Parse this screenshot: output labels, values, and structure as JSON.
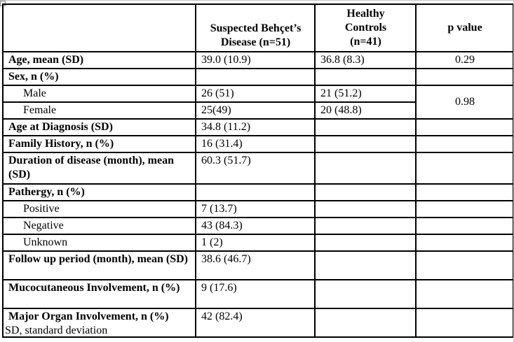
{
  "table": {
    "columns": [
      {
        "lines": []
      },
      {
        "lines": [
          "Suspected Behçet’s",
          "Disease (n=51)"
        ]
      },
      {
        "lines": [
          "Healthy",
          "Controls",
          "(n=41)"
        ]
      },
      {
        "lines": [
          "p value"
        ]
      }
    ],
    "rows": [
      {
        "level": "main",
        "label": "Age, mean (SD)",
        "values": [
          "39.0 (10.9)",
          "36.8 (8.3)"
        ],
        "p": "0.29"
      },
      {
        "level": "main",
        "label": "Sex, n (%)",
        "values": [
          "",
          ""
        ],
        "p": ""
      },
      {
        "level": "sub",
        "label": "Male",
        "values": [
          "26 (51)",
          "21 (51.2)"
        ],
        "p": "0.98",
        "p_rowspan": 2
      },
      {
        "level": "sub",
        "label": "Female",
        "values": [
          "25(49)",
          "20 (48.8)"
        ]
      },
      {
        "level": "main",
        "label": "Age at Diagnosis (SD)",
        "values": [
          "34.8 (11.2)",
          ""
        ],
        "p": ""
      },
      {
        "level": "main",
        "label": "Family History, n (%)",
        "values": [
          "16 (31.4)",
          ""
        ],
        "p": ""
      },
      {
        "level": "main",
        "label": "Duration of disease (month), mean (SD)",
        "values": [
          "60.3 (51.7)",
          ""
        ],
        "p": ""
      },
      {
        "level": "main",
        "label": "Pathergy, n (%)",
        "values": [
          "",
          ""
        ],
        "p": ""
      },
      {
        "level": "sub",
        "label": "Positive",
        "values": [
          "7 (13.7)",
          ""
        ],
        "p": ""
      },
      {
        "level": "sub",
        "label": "Negative",
        "values": [
          "43 (84.3)",
          ""
        ],
        "p": ""
      },
      {
        "level": "sub",
        "label": "Unknown",
        "values": [
          "1 (2)",
          ""
        ],
        "p": ""
      },
      {
        "level": "main",
        "label": "Follow up period (month), mean (SD)",
        "values": [
          "38.6 (46.7)",
          ""
        ],
        "p": ""
      },
      {
        "level": "main",
        "label": "Mucocutaneous Involvement, n (%)",
        "values": [
          "9 (17.6)",
          ""
        ],
        "p": ""
      },
      {
        "level": "main",
        "label": "Major Organ Involvement, n (%)",
        "values": [
          "42 (82.4)",
          ""
        ],
        "p": ""
      }
    ],
    "footnote": "SD, standard deviation",
    "colors": {
      "border": "#000000",
      "text": "#000000",
      "background": "#ffffff"
    }
  }
}
